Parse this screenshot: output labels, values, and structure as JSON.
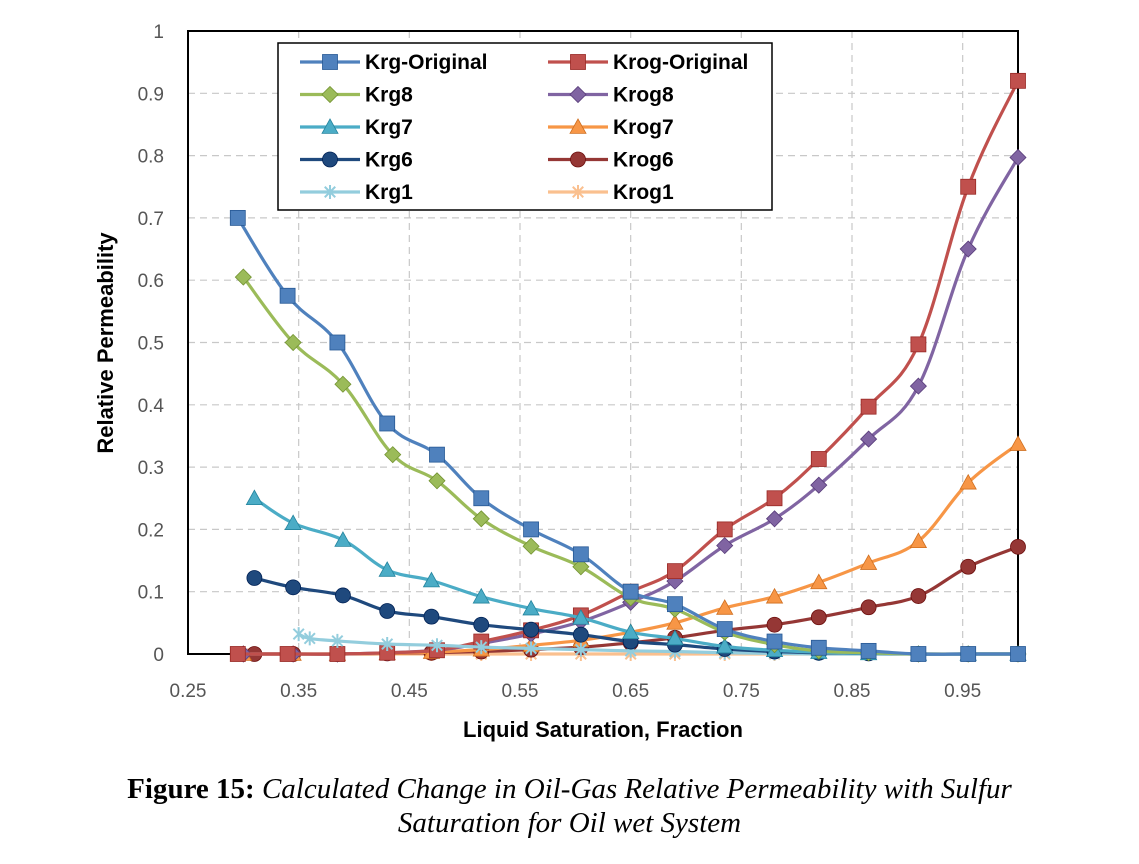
{
  "chart_data": {
    "type": "line",
    "xlabel": "Liquid Saturation, Fraction",
    "ylabel": "Relative Permeability",
    "xlim": [
      0.25,
      1.0
    ],
    "ylim": [
      0,
      1
    ],
    "xticks": [
      0.25,
      0.35,
      0.45,
      0.55,
      0.65,
      0.75,
      0.85,
      0.95
    ],
    "xtick_labels": [
      "0.25",
      "0.35",
      "0.45",
      "0.55",
      "0.65",
      "0.75",
      "0.85",
      "0.95"
    ],
    "yticks": [
      0,
      0.1,
      0.2,
      0.3,
      0.4,
      0.5,
      0.6,
      0.7,
      0.8,
      0.9,
      1
    ],
    "ytick_labels": [
      "0",
      "0.1",
      "0.2",
      "0.3",
      "0.4",
      "0.5",
      "0.6",
      "0.7",
      "0.8",
      "0.9",
      "1"
    ],
    "grid": "dashed vertical and horizontal",
    "legend_position": "top-center",
    "series": [
      {
        "name": "Krg-Original",
        "color": "#4f81bd",
        "marker": "square",
        "x": [
          0.295,
          0.34,
          0.385,
          0.43,
          0.475,
          0.515,
          0.56,
          0.605,
          0.65,
          0.69,
          0.735,
          0.78,
          0.82,
          0.865,
          0.91,
          0.955,
          1.0
        ],
        "y": [
          0.7,
          0.575,
          0.5,
          0.37,
          0.32,
          0.25,
          0.2,
          0.16,
          0.1,
          0.08,
          0.04,
          0.02,
          0.01,
          0.005,
          0.0,
          0.0,
          0.0
        ]
      },
      {
        "name": "Krg8",
        "color": "#9bbb59",
        "marker": "diamond",
        "x": [
          0.3,
          0.345,
          0.39,
          0.435,
          0.475,
          0.515,
          0.56,
          0.605,
          0.65,
          0.69,
          0.735,
          0.78,
          0.82,
          0.865,
          0.91,
          0.955,
          1.0
        ],
        "y": [
          0.605,
          0.5,
          0.433,
          0.32,
          0.278,
          0.217,
          0.173,
          0.14,
          0.09,
          0.072,
          0.035,
          0.015,
          0.005,
          0.002,
          0.0,
          0.0,
          0.0
        ]
      },
      {
        "name": "Krg7",
        "color": "#4bacc6",
        "marker": "triangle",
        "x": [
          0.31,
          0.345,
          0.39,
          0.43,
          0.47,
          0.515,
          0.56,
          0.605,
          0.65,
          0.69,
          0.735,
          0.78,
          0.82,
          0.865,
          0.91,
          0.955,
          1.0
        ],
        "y": [
          0.25,
          0.21,
          0.183,
          0.135,
          0.118,
          0.092,
          0.073,
          0.058,
          0.035,
          0.025,
          0.012,
          0.006,
          0.003,
          0.001,
          0.0,
          0.0,
          0.0
        ]
      },
      {
        "name": "Krg6",
        "color": "#1f497d",
        "marker": "circle",
        "x": [
          0.31,
          0.345,
          0.39,
          0.43,
          0.47,
          0.515,
          0.56,
          0.605,
          0.65,
          0.69,
          0.735,
          0.78,
          0.82,
          0.865,
          0.91,
          0.955,
          1.0
        ],
        "y": [
          0.122,
          0.107,
          0.094,
          0.069,
          0.06,
          0.047,
          0.039,
          0.031,
          0.02,
          0.015,
          0.008,
          0.004,
          0.002,
          0.001,
          0.0,
          0.0,
          0.0
        ]
      },
      {
        "name": "Krg1",
        "color": "#93cddd",
        "marker": "star",
        "x": [
          0.35,
          0.36,
          0.385,
          0.43,
          0.475,
          0.515,
          0.56,
          0.605,
          0.65,
          0.69,
          0.735,
          0.78,
          0.82,
          0.865,
          0.91,
          0.955,
          1.0
        ],
        "y": [
          0.032,
          0.025,
          0.021,
          0.016,
          0.014,
          0.011,
          0.009,
          0.007,
          0.005,
          0.004,
          0.002,
          0.001,
          0.0,
          0.0,
          0.0,
          0.0,
          0.0
        ]
      },
      {
        "name": "Krog-Original",
        "color": "#c0504d",
        "marker": "square",
        "x": [
          0.295,
          0.34,
          0.385,
          0.43,
          0.475,
          0.515,
          0.56,
          0.605,
          0.65,
          0.69,
          0.735,
          0.78,
          0.82,
          0.865,
          0.91,
          0.955,
          1.0
        ],
        "y": [
          0.0,
          0.0,
          0.0,
          0.002,
          0.006,
          0.02,
          0.038,
          0.062,
          0.1,
          0.133,
          0.2,
          0.25,
          0.313,
          0.397,
          0.497,
          0.75,
          0.92
        ]
      },
      {
        "name": "Krog8",
        "color": "#8064a2",
        "marker": "diamond",
        "x": [
          0.3,
          0.345,
          0.385,
          0.43,
          0.475,
          0.515,
          0.56,
          0.605,
          0.65,
          0.69,
          0.735,
          0.78,
          0.82,
          0.865,
          0.91,
          0.955,
          1.0
        ],
        "y": [
          0.0,
          0.0,
          0.0,
          0.002,
          0.006,
          0.017,
          0.032,
          0.052,
          0.083,
          0.117,
          0.174,
          0.217,
          0.271,
          0.345,
          0.43,
          0.65,
          0.797
        ]
      },
      {
        "name": "Krog7",
        "color": "#f79646",
        "marker": "triangle",
        "x": [
          0.3,
          0.345,
          0.385,
          0.43,
          0.47,
          0.515,
          0.56,
          0.605,
          0.65,
          0.69,
          0.735,
          0.78,
          0.82,
          0.865,
          0.91,
          0.955,
          1.0
        ],
        "y": [
          0.0,
          0.0,
          0.0,
          0.001,
          0.003,
          0.007,
          0.014,
          0.022,
          0.035,
          0.05,
          0.074,
          0.092,
          0.115,
          0.146,
          0.181,
          0.275,
          0.337
        ]
      },
      {
        "name": "Krog6",
        "color": "#953735",
        "marker": "circle",
        "x": [
          0.31,
          0.345,
          0.385,
          0.43,
          0.47,
          0.515,
          0.56,
          0.605,
          0.65,
          0.69,
          0.735,
          0.78,
          0.82,
          0.865,
          0.91,
          0.955,
          1.0
        ],
        "y": [
          0.0,
          0.0,
          0.0,
          0.001,
          0.002,
          0.004,
          0.007,
          0.011,
          0.018,
          0.026,
          0.038,
          0.047,
          0.059,
          0.075,
          0.093,
          0.14,
          0.172
        ]
      },
      {
        "name": "Krog1",
        "color": "#fac08f",
        "marker": "star",
        "x": [
          0.3,
          0.345,
          0.385,
          0.43,
          0.47,
          0.515,
          0.56,
          0.605,
          0.65,
          0.69,
          0.735,
          0.78,
          0.82,
          0.865,
          0.91,
          0.955,
          1.0
        ],
        "y": [
          0.0,
          0.0,
          0.0,
          0.0,
          0.0,
          0.0,
          0.0,
          0.0,
          0.0,
          0.0,
          0.0,
          0.0,
          0.0,
          0.0,
          0.0,
          0.0,
          0.0
        ]
      }
    ]
  },
  "legend": {
    "left": [
      "Krg-Original",
      "Krg8",
      "Krg7",
      "Krg6",
      "Krg1"
    ],
    "right": [
      "Krog-Original",
      "Krog8",
      "Krog7",
      "Krog6",
      "Krog1"
    ]
  },
  "caption": {
    "label": "Figure 15:",
    "line1": "Calculated Change in Oil-Gas Relative Permeability with Sulfur",
    "line2": "Saturation for Oil wet System"
  }
}
